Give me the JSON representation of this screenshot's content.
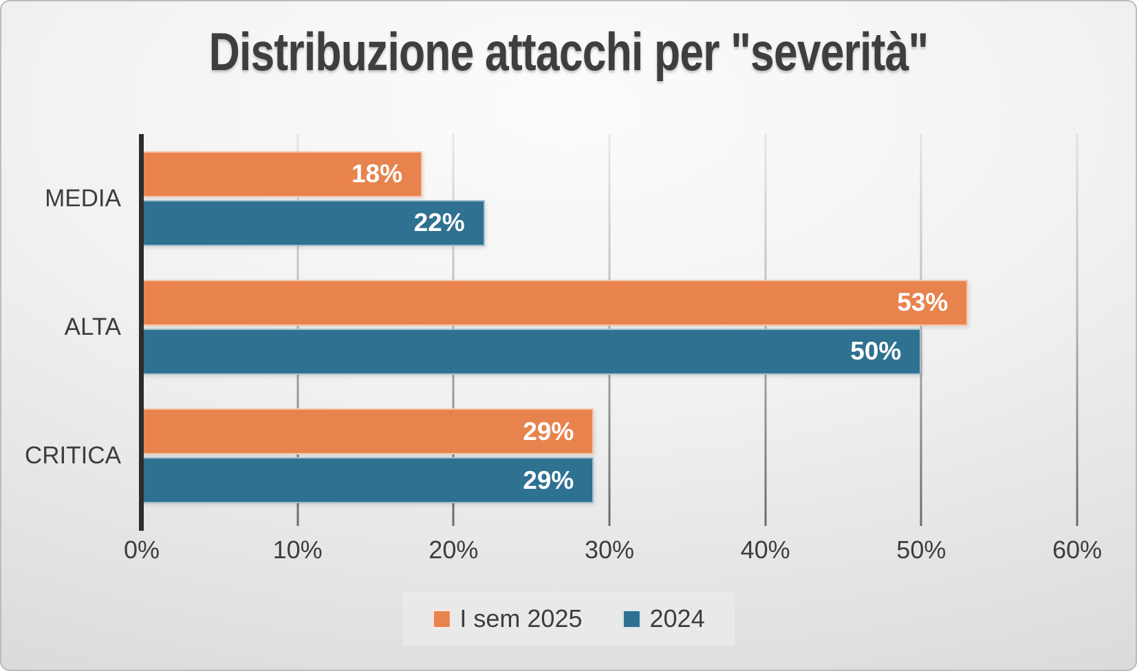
{
  "chart_data": {
    "type": "bar",
    "orientation": "horizontal",
    "title": "Distribuzione attacchi per \"severità\"",
    "categories": [
      "MEDIA",
      "ALTA",
      "CRITICA"
    ],
    "series": [
      {
        "name": "I sem 2025",
        "color": "#E8834E",
        "values": [
          18,
          53,
          29
        ]
      },
      {
        "name": "2024",
        "color": "#2E7191",
        "values": [
          22,
          50,
          29
        ]
      }
    ],
    "data_labels": {
      "I sem 2025": [
        "18%",
        "53%",
        "29%"
      ],
      "2024": [
        "22%",
        "50%",
        "29%"
      ]
    },
    "x_ticks": [
      "0%",
      "10%",
      "20%",
      "30%",
      "40%",
      "50%",
      "60%"
    ],
    "xlim": [
      0,
      60
    ],
    "grid": "vertical-gridlines-on",
    "legend_position": "bottom-center"
  },
  "colors": {
    "series_1": "#E8834E",
    "series_2": "#2E7191",
    "text": "#3d3d3d",
    "axis_line": "#2d2d2d",
    "legend_background": "#e9e9e9",
    "data_label_text": "#ffffff"
  }
}
